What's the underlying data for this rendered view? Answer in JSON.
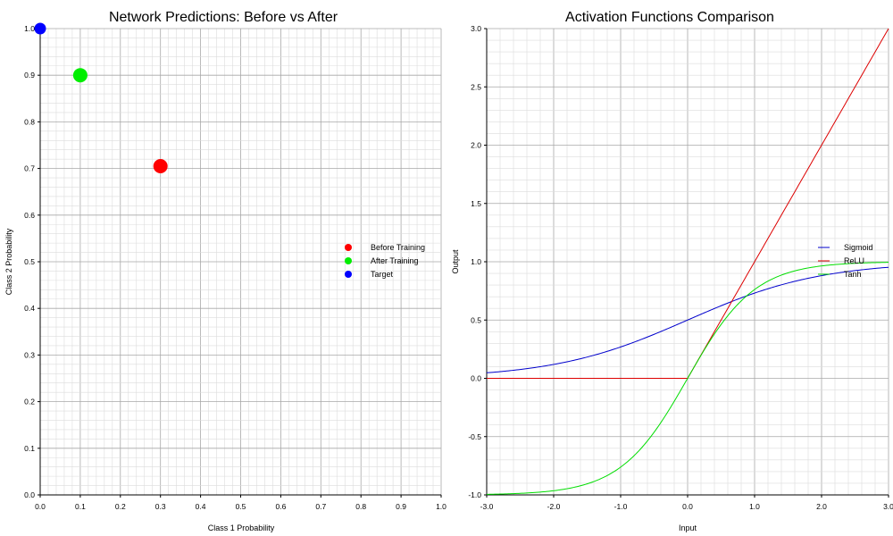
{
  "chart_data": [
    {
      "type": "scatter",
      "title": "Network Predictions: Before vs After",
      "xlabel": "Class 1 Probability",
      "ylabel": "Class 2 Probability",
      "xlim": [
        0,
        1
      ],
      "ylim": [
        0,
        1
      ],
      "xticks": [
        "0.0",
        "0.1",
        "0.2",
        "0.3",
        "0.4",
        "0.5",
        "0.6",
        "0.7",
        "0.8",
        "0.9",
        "1.0"
      ],
      "yticks": [
        "0.0",
        "0.1",
        "0.2",
        "0.3",
        "0.4",
        "0.5",
        "0.6",
        "0.7",
        "0.8",
        "0.9",
        "1.0"
      ],
      "grid": true,
      "legend_position": "center-right",
      "series": [
        {
          "name": "Before Training",
          "color": "#ff0000",
          "points": [
            {
              "x": 0.3,
              "y": 0.705
            }
          ]
        },
        {
          "name": "After Training",
          "color": "#00ee00",
          "points": [
            {
              "x": 0.1,
              "y": 0.9
            }
          ]
        },
        {
          "name": "Target",
          "color": "#0000ff",
          "points": [
            {
              "x": 0.0,
              "y": 1.0
            }
          ]
        }
      ]
    },
    {
      "type": "line",
      "title": "Activation Functions Comparison",
      "xlabel": "Input",
      "ylabel": "Output",
      "xlim": [
        -3,
        3
      ],
      "ylim": [
        -1,
        3
      ],
      "xticks": [
        "-3.0",
        "-2.0",
        "-1.0",
        "0.0",
        "1.0",
        "2.0",
        "3.0"
      ],
      "yticks": [
        "-1.0",
        "-0.5",
        "0.0",
        "0.5",
        "1.0",
        "1.5",
        "2.0",
        "2.5",
        "3.0"
      ],
      "grid": true,
      "legend_position": "center-right",
      "x_range": [
        -3,
        3
      ],
      "series": [
        {
          "name": "Sigmoid",
          "color": "#0000cc",
          "function": "sigmoid"
        },
        {
          "name": "ReLU",
          "color": "#dd0000",
          "function": "relu"
        },
        {
          "name": "Tanh",
          "color": "#00dd00",
          "function": "tanh"
        }
      ]
    }
  ]
}
